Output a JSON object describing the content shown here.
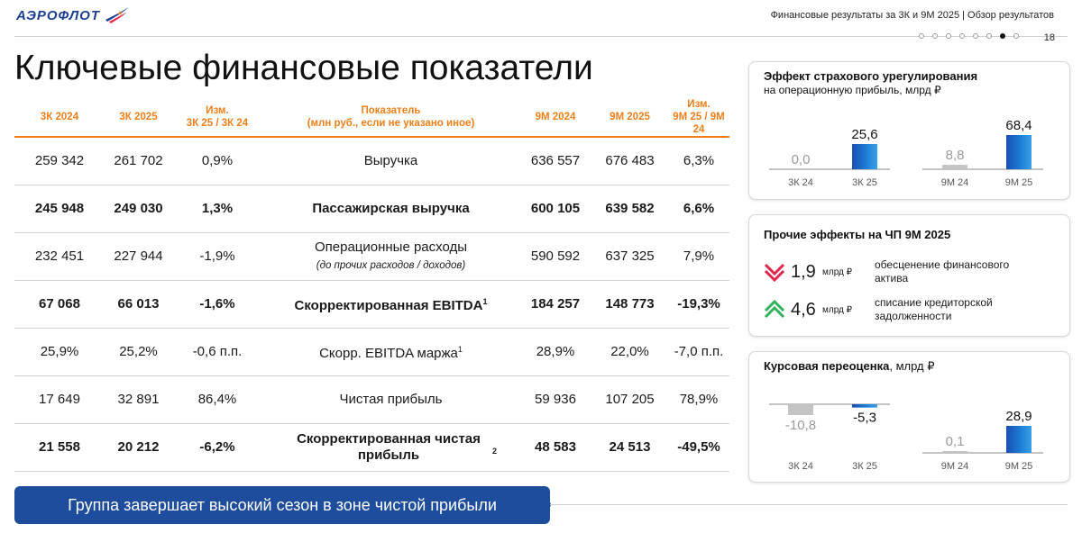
{
  "header": {
    "logo_text": "АЭРОФЛОТ",
    "title": "Финансовые результаты за 3К и 9М 2025 | Обзор результатов",
    "page_number": "18",
    "pager_total": 8,
    "pager_active": 6
  },
  "main_title": "Ключевые финансовые показатели",
  "table": {
    "headers": {
      "q2024": "3К 2024",
      "q2025": "3К 2025",
      "q_change": [
        "Изм.",
        "3К 25 / 3К 24"
      ],
      "indicator": [
        "Показатель",
        "(млн руб., если не указано иное)"
      ],
      "m2024": "9М 2024",
      "m2025": "9М 2025",
      "m_change": [
        "Изм.",
        "9М 25 / 9М 24"
      ]
    },
    "rows": [
      {
        "bold": false,
        "q2024": "259 342",
        "q2025": "261 702",
        "q_change": "0,9%",
        "name": "Выручка",
        "sub": "",
        "sup": "",
        "m2024": "636 557",
        "m2025": "676 483",
        "m_change": "6,3%"
      },
      {
        "bold": true,
        "q2024": "245 948",
        "q2025": "249 030",
        "q_change": "1,3%",
        "name": "Пассажирская выручка",
        "sub": "",
        "sup": "",
        "m2024": "600 105",
        "m2025": "639 582",
        "m_change": "6,6%"
      },
      {
        "bold": false,
        "q2024": "232 451",
        "q2025": "227 944",
        "q_change": "-1,9%",
        "name": "Операционные расходы",
        "sub": "(до прочих расходов / доходов)",
        "sup": "",
        "m2024": "590 592",
        "m2025": "637 325",
        "m_change": "7,9%"
      },
      {
        "bold": true,
        "q2024": "67 068",
        "q2025": "66 013",
        "q_change": "-1,6%",
        "name": "Скорректированная EBITDA",
        "sub": "",
        "sup": "1",
        "m2024": "184 257",
        "m2025": "148 773",
        "m_change": "-19,3%"
      },
      {
        "bold": false,
        "q2024": "25,9%",
        "q2025": "25,2%",
        "q_change": "-0,6 п.п.",
        "name": "Скорр. EBITDA маржа",
        "sub": "",
        "sup": "1",
        "m2024": "28,9%",
        "m2025": "22,0%",
        "m_change": "-7,0 п.п."
      },
      {
        "bold": false,
        "q2024": "17 649",
        "q2025": "32 891",
        "q_change": "86,4%",
        "name": "Чистая прибыль",
        "sub": "",
        "sup": "",
        "m2024": "59 936",
        "m2025": "107 205",
        "m_change": "78,9%"
      },
      {
        "bold": true,
        "q2024": "21 558",
        "q2025": "20 212",
        "q_change": "-6,2%",
        "name": "Скорректированная чистая прибыль",
        "sub": "",
        "sup": "2",
        "m2024": "48 583",
        "m2025": "24 513",
        "m_change": "-49,5%"
      }
    ]
  },
  "banner_text": "Группа завершает высокий сезон в зоне чистой прибыли",
  "insurance_card": {
    "title": "Эффект страхового урегулирования",
    "subtitle": "на операционную прибыль, млрд ₽",
    "chart_data": {
      "type": "bar",
      "categories": [
        "3К 24",
        "3К 25",
        "9М 24",
        "9М 25"
      ],
      "values": [
        0.0,
        25.6,
        8.8,
        68.4
      ],
      "labels": [
        "0,0",
        "25,6",
        "8,8",
        "68,4"
      ],
      "ylim": [
        0,
        68.4
      ]
    }
  },
  "other_effects_card": {
    "title": "Прочие эффекты на ЧП 9М 2025",
    "items": [
      {
        "direction": "down",
        "value": "1,9",
        "unit": "млрд ₽",
        "description": "обесценение финансового актива"
      },
      {
        "direction": "up",
        "value": "4,6",
        "unit": "млрд ₽",
        "description": "списание кредиторской задолженности"
      }
    ]
  },
  "fx_card": {
    "title": "Курсовая переоценка",
    "unit": ", млрд ₽",
    "chart_data": {
      "type": "bar",
      "categories": [
        "3К 24",
        "3К 25",
        "9М 24",
        "9М 25"
      ],
      "values": [
        -10.8,
        -5.3,
        0.1,
        28.9
      ],
      "labels": [
        "-10,8",
        "-5,3",
        "0,1",
        "28,9"
      ]
    }
  },
  "colors": {
    "accent_orange": "#ef7f1a",
    "brand_blue": "#1e4d9e",
    "bar_blue": "#1a6fc8",
    "bar_gray": "#c4c4c4",
    "arrow_red": "#e4254b",
    "arrow_green": "#2fb35c"
  }
}
